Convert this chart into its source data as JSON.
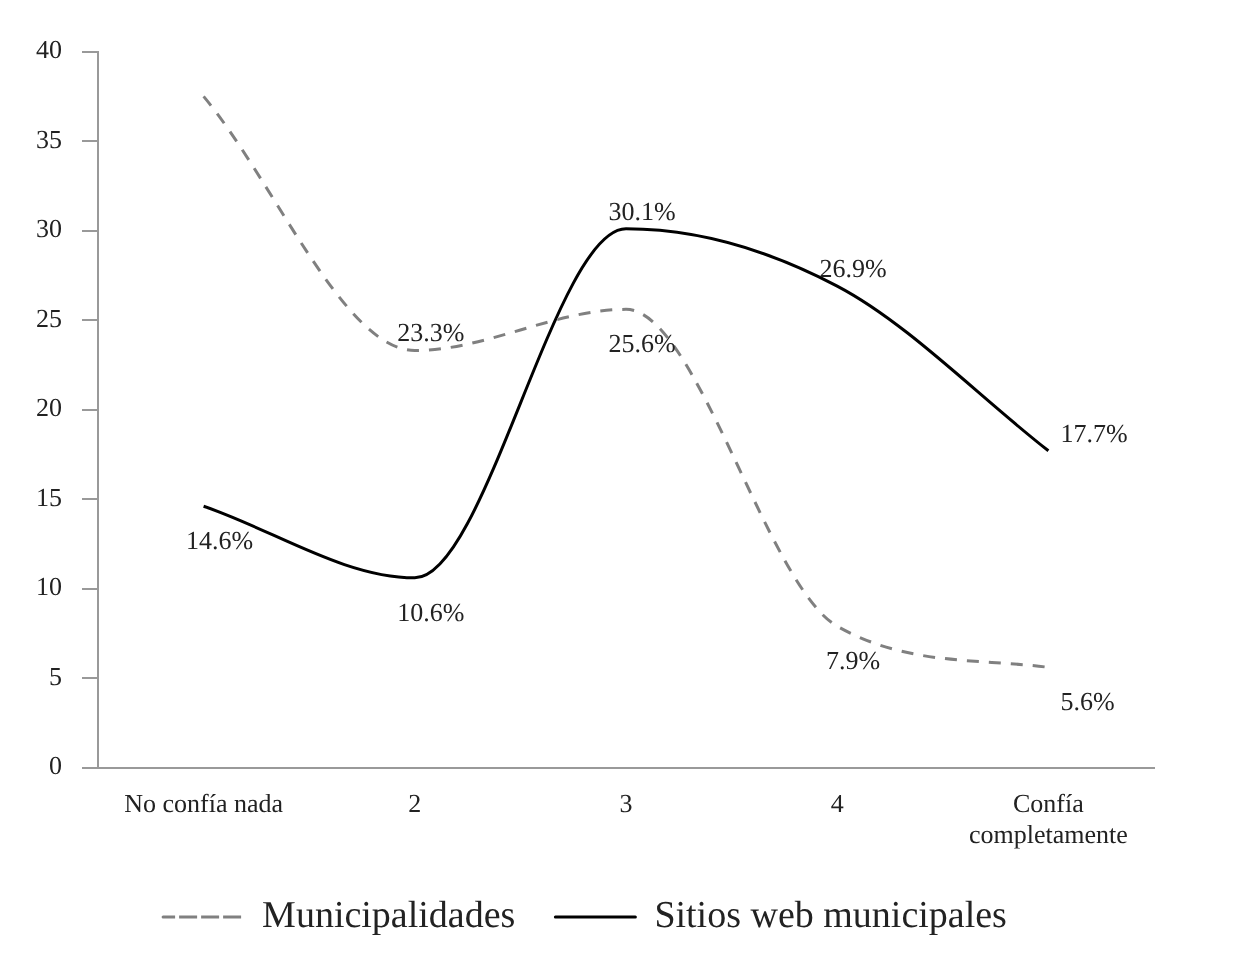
{
  "chart_data": {
    "type": "line",
    "categories": [
      "No confía nada",
      "2",
      "3",
      "4",
      "Confía completamente"
    ],
    "series": [
      {
        "name": "Municipalidades",
        "color": "#808080",
        "line_style": "dashed",
        "values": [
          37.5,
          23.3,
          25.6,
          7.9,
          5.6
        ],
        "value_labels": [
          null,
          "23.3%",
          "25.6%",
          "7.9%",
          "5.6%"
        ]
      },
      {
        "name": "Sitios web municipales",
        "color": "#000000",
        "line_style": "solid",
        "values": [
          14.6,
          10.6,
          30.1,
          26.9,
          17.7
        ],
        "value_labels": [
          "14.6%",
          "10.6%",
          "30.1%",
          "26.9%",
          "17.7%"
        ]
      }
    ],
    "ylim": [
      0,
      40
    ],
    "yticks": [
      0,
      5,
      10,
      15,
      20,
      25,
      30,
      35,
      40
    ],
    "grid": false,
    "legend": "bottom",
    "marker": "none"
  }
}
